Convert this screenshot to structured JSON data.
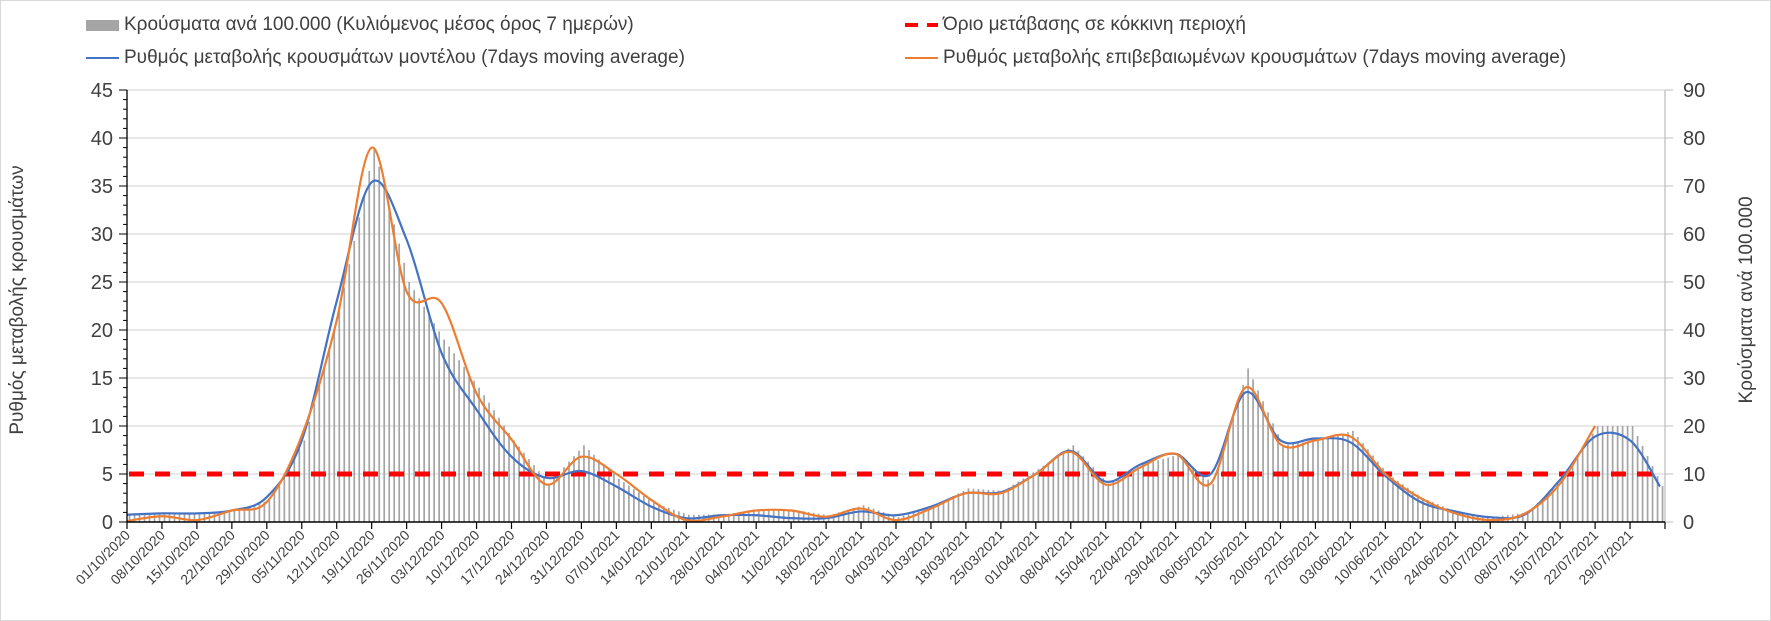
{
  "legend": {
    "bars": "Κρούσματα ανά 100.000 (Κυλιόμενος μέσος όρος 7 ημερών)",
    "model": "Ρυθμός μεταβολής κρουσμάτων μοντέλου (7days moving average)",
    "threshold": "Όριο μετάβασης σε κόκκινη περιοχή",
    "confirmed": "Ρυθμός μεταβολής επιβεβαιωμένων κρουσμάτων (7days moving average)"
  },
  "chart_data": {
    "type": "bar+line",
    "title": "",
    "xlabel": "",
    "ylabel_left": "Ρυθμός μεταβολής κρουσμάτων",
    "ylabel_right": "Κρούσματα ανά 100.000",
    "ylim_left": [
      0,
      45
    ],
    "ylim_right": [
      0,
      90
    ],
    "yticks_left": [
      "0",
      "5",
      "10",
      "15",
      "20",
      "25",
      "30",
      "35",
      "40",
      "45"
    ],
    "yticks_right": [
      "0",
      "10",
      "20",
      "30",
      "40",
      "50",
      "60",
      "70",
      "80",
      "90"
    ],
    "grid": true,
    "legend_position": "top",
    "x_tick_labels": [
      "01/10/2020",
      "08/10/2020",
      "15/10/2020",
      "22/10/2020",
      "29/10/2020",
      "05/11/2020",
      "12/11/2020",
      "19/11/2020",
      "26/11/2020",
      "03/12/2020",
      "10/12/2020",
      "17/12/2020",
      "24/12/2020",
      "31/12/2020",
      "07/01/2021",
      "14/01/2021",
      "21/01/2021",
      "28/01/2021",
      "04/02/2021",
      "11/02/2021",
      "18/02/2021",
      "25/02/2021",
      "04/03/2021",
      "11/03/2021",
      "18/03/2021",
      "25/03/2021",
      "01/04/2021",
      "08/04/2021",
      "15/04/2021",
      "22/04/2021",
      "29/04/2021",
      "06/05/2021",
      "13/05/2021",
      "20/05/2021",
      "27/05/2021",
      "03/06/2021",
      "10/06/2021",
      "17/06/2021",
      "24/06/2021",
      "01/07/2021",
      "08/07/2021",
      "15/07/2021",
      "22/07/2021",
      "29/07/2021"
    ],
    "x_days_since_2020_10_01": [
      0,
      7,
      14,
      21,
      28,
      35,
      42,
      49,
      56,
      63,
      70,
      77,
      84,
      91,
      98,
      105,
      112,
      119,
      126,
      133,
      140,
      147,
      154,
      161,
      168,
      175,
      182,
      189,
      196,
      203,
      210,
      217,
      224,
      231,
      238,
      245,
      252,
      259,
      266,
      273,
      280,
      287,
      294,
      301,
      307
    ],
    "x_max_day": 308,
    "series": [
      {
        "name": "Κρούσματα ανά 100.000 (Κυλιόμενος μέσος όρος 7 ημερών)",
        "type": "bar",
        "axis": "right",
        "color": "#a5a5a5",
        "values": [
          1.5,
          1.8,
          1.6,
          2.5,
          4.5,
          17,
          44,
          78,
          50,
          38,
          28,
          17,
          8,
          16,
          9,
          4,
          1.5,
          1.6,
          2.4,
          2.6,
          1.4,
          3.5,
          1,
          3.3,
          7,
          6.5,
          11,
          16,
          8,
          12,
          14,
          8,
          32,
          16,
          17,
          19,
          10,
          5,
          2,
          1,
          2,
          9,
          20,
          20,
          7.5
        ]
      },
      {
        "name": "Ρυθμός μεταβολής κρουσμάτων μοντέλου (7days moving average)",
        "type": "line",
        "axis": "left",
        "color": "#4472c4",
        "values": [
          0.76,
          0.9,
          0.9,
          1.2,
          2.6,
          8.5,
          23,
          35.4,
          29.4,
          17.6,
          11.7,
          6.8,
          4.6,
          5.3,
          3.7,
          1.6,
          0.4,
          0.7,
          0.7,
          0.4,
          0.4,
          1.1,
          0.7,
          1.6,
          3.0,
          3.1,
          5,
          7.4,
          4.2,
          6.0,
          7.1,
          5,
          13.5,
          8.5,
          8.7,
          8.3,
          4.8,
          2.1,
          1.1,
          0.5,
          0.8,
          4.4,
          8.9,
          8.5,
          3.7
        ]
      },
      {
        "name": "Ρυθμός μεταβολής επιβεβαιωμένων κρουσμάτων (7days moving average)",
        "type": "line",
        "axis": "left",
        "color": "#ed7d31",
        "values": [
          0.1,
          0.6,
          0.2,
          1.2,
          2.1,
          9,
          21,
          39,
          24,
          22.8,
          13.4,
          8.6,
          3.9,
          6.8,
          5.0,
          2.3,
          0.2,
          0.55,
          1.2,
          1.2,
          0.55,
          1.4,
          0.2,
          1.4,
          3.0,
          3.0,
          5,
          7.3,
          3.9,
          5.7,
          7.1,
          4,
          14,
          8.1,
          8.5,
          8.9,
          5.0,
          2.5,
          0.9,
          0.2,
          0.9,
          4.0,
          10,
          null,
          null
        ]
      },
      {
        "name": "Όριο μετάβασης σε κόκκινη περιοχή",
        "type": "hline",
        "axis": "left",
        "color": "#ff0000",
        "value": 5
      }
    ]
  }
}
